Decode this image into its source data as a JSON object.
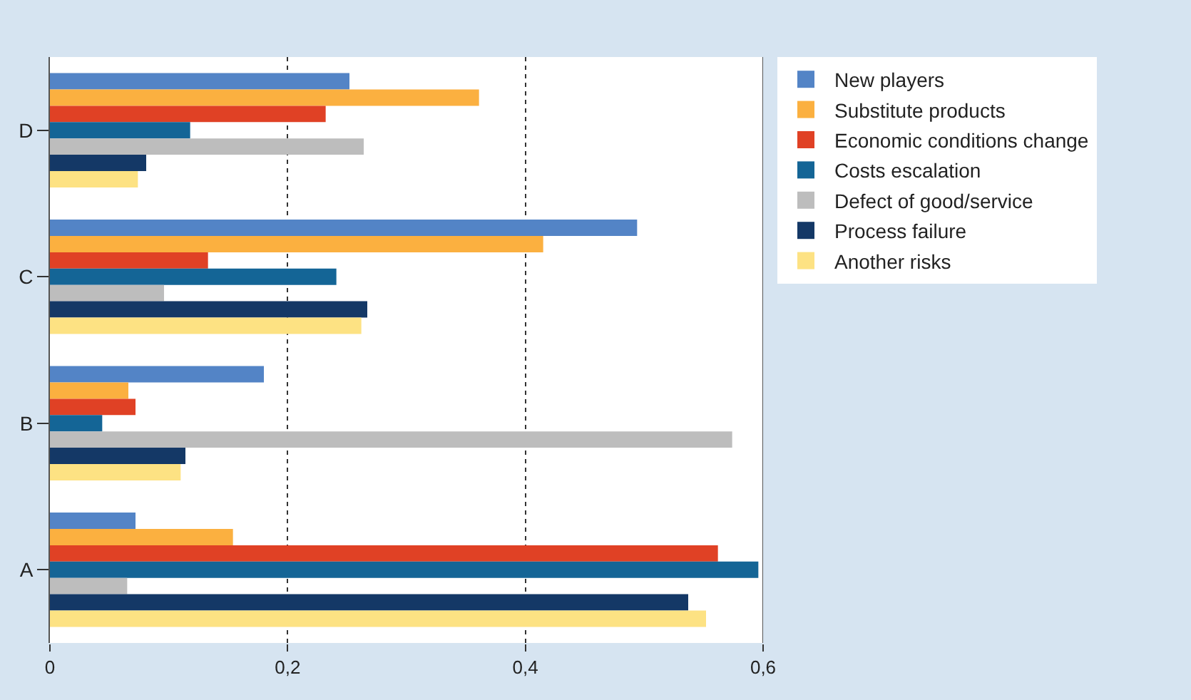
{
  "chart_data": {
    "type": "bar",
    "orientation": "horizontal",
    "categories": [
      "D",
      "C",
      "B",
      "A"
    ],
    "series": [
      {
        "name": "New players",
        "color": "#5384c6",
        "values": [
          0.252,
          0.494,
          0.18,
          0.072
        ]
      },
      {
        "name": "Substitute products",
        "color": "#fbb040",
        "values": [
          0.361,
          0.415,
          0.066,
          0.154
        ]
      },
      {
        "name": "Economic conditions change",
        "color": "#e04125",
        "values": [
          0.232,
          0.133,
          0.072,
          0.562
        ]
      },
      {
        "name": "Costs escalation",
        "color": "#146596",
        "values": [
          0.118,
          0.241,
          0.044,
          0.596
        ]
      },
      {
        "name": "Defect of good/service",
        "color": "#bdbdbd",
        "values": [
          0.264,
          0.096,
          0.574,
          0.065
        ]
      },
      {
        "name": "Process failure",
        "color": "#143866",
        "values": [
          0.081,
          0.267,
          0.114,
          0.537
        ]
      },
      {
        "name": "Another risks",
        "color": "#fde283",
        "values": [
          0.074,
          0.262,
          0.11,
          0.552
        ]
      }
    ],
    "xlim": [
      0,
      0.6
    ],
    "xticks": [
      0,
      {
        "value": 0.2,
        "label": "0,2"
      },
      {
        "value": 0.4,
        "label": "0,4"
      },
      {
        "value": 0.6,
        "label": "0,6"
      }
    ],
    "grid": "x",
    "line_style": "dotted",
    "legend": "top right"
  }
}
